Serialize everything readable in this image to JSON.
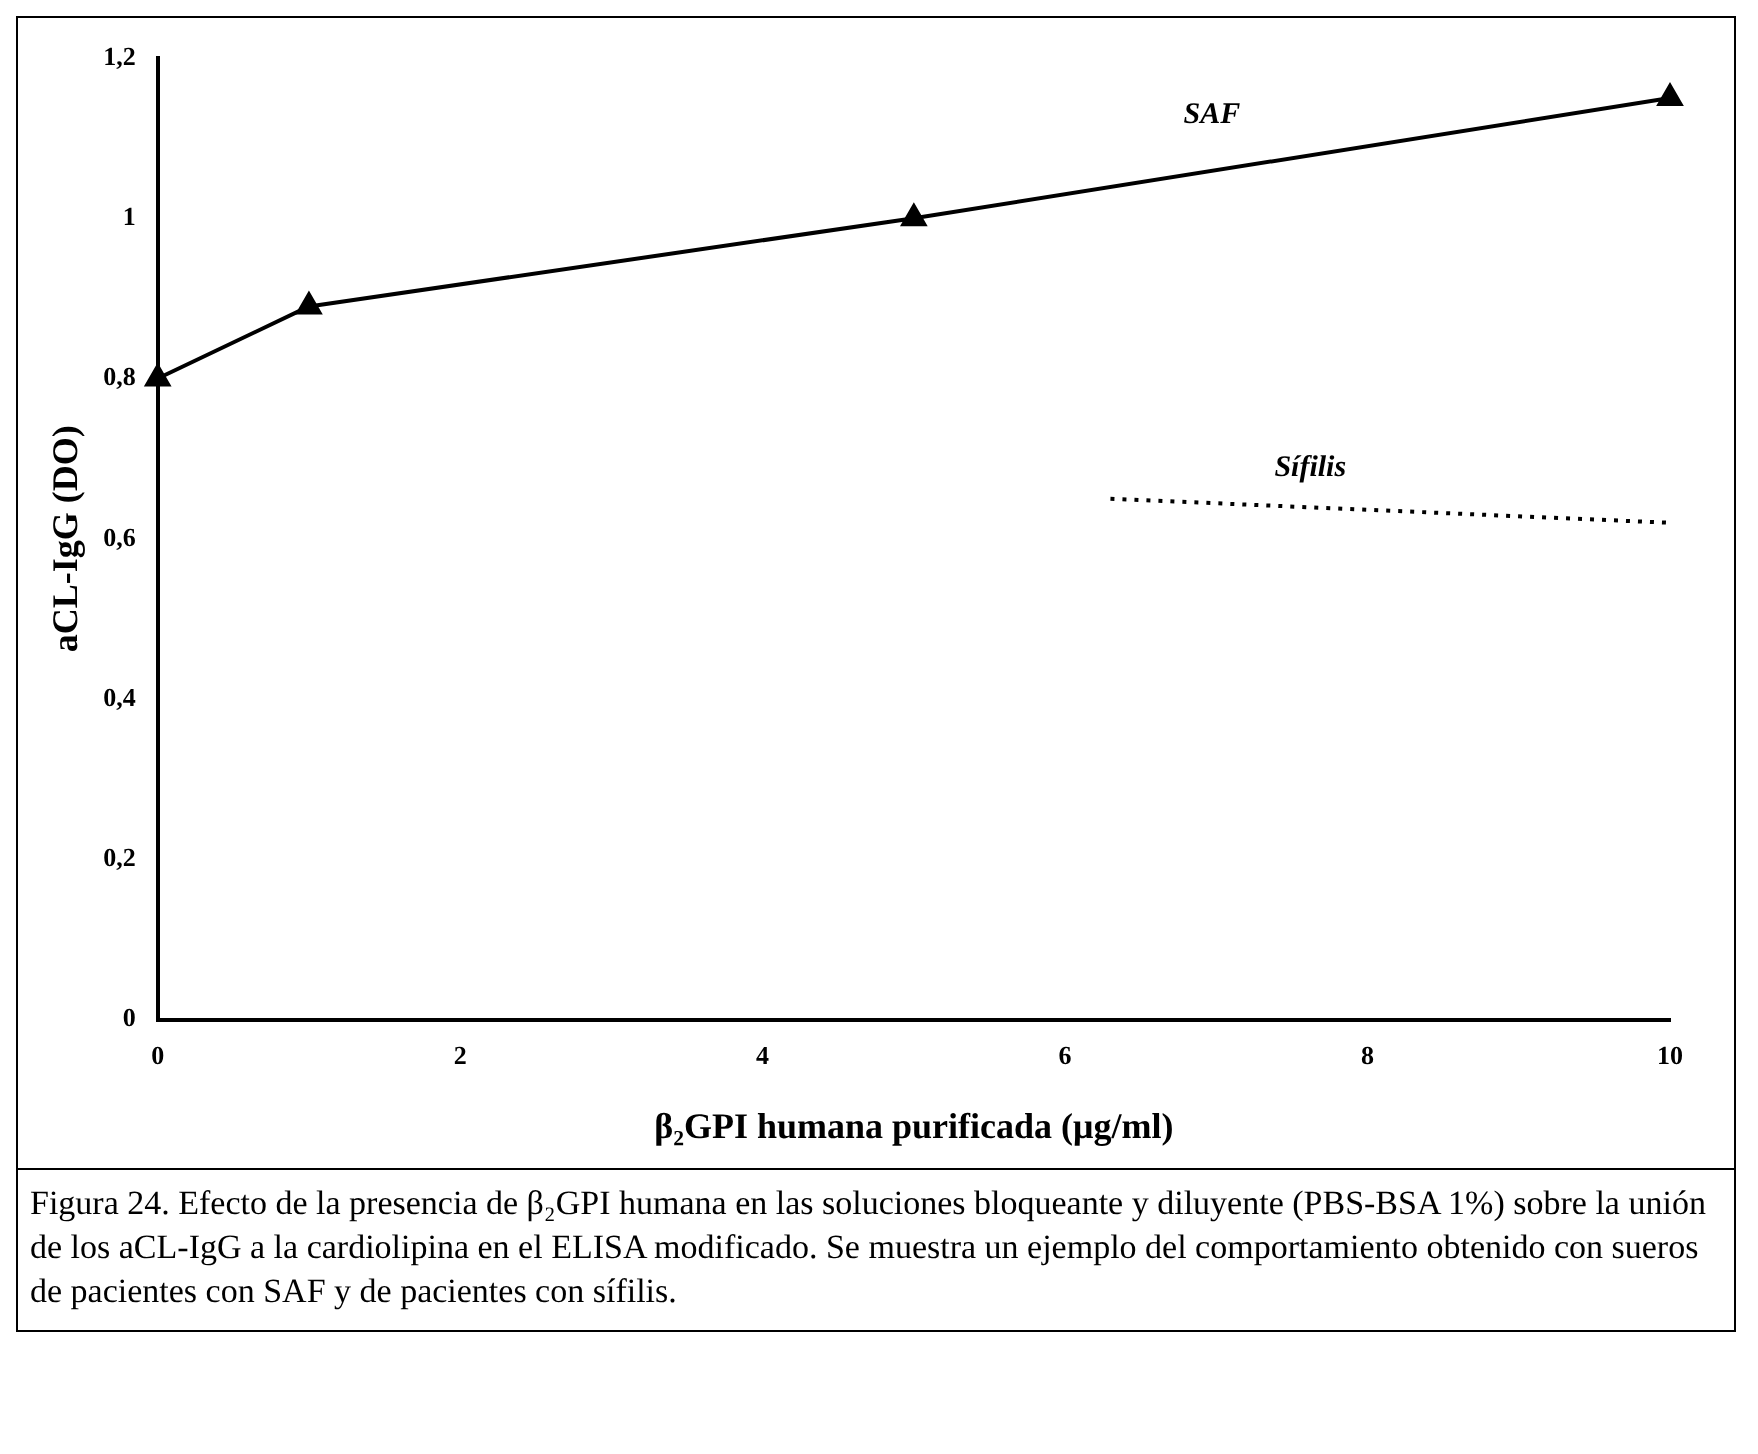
{
  "chart_data": {
    "type": "line",
    "xlabel": "β₂GPI humana purificada (μg/ml)",
    "ylabel": "aCL-IgG (DO)",
    "xlim": [
      0,
      10
    ],
    "xticks": [
      0,
      2,
      4,
      6,
      8,
      10
    ],
    "ylim": [
      0,
      1.2
    ],
    "yticks": [
      0,
      {
        "value": 0.2,
        "label": "0,2"
      },
      {
        "value": 0.4,
        "label": "0,4"
      },
      {
        "value": 0.6,
        "label": "0,6"
      },
      {
        "value": 0.8,
        "label": "0,8"
      },
      1,
      {
        "value": 1.2,
        "label": "1,2"
      }
    ],
    "grid": false,
    "legend": false,
    "series": [
      {
        "name": "SAF",
        "color": "#000000",
        "x": [
          0,
          1,
          5,
          10
        ],
        "values": [
          0.8,
          0.89,
          1.0,
          1.15
        ],
        "marker": "triangle",
        "line_style": "solid"
      },
      {
        "name": "Sífilis",
        "color": "#000000",
        "x": [
          6.3,
          10
        ],
        "values": [
          0.65,
          0.62
        ],
        "marker": "none",
        "line_style": "dotted"
      }
    ],
    "annotations": [
      "Figura 24. Efecto de la presencia de β₂GPI humana en las soluciones bloqueante y diluyente (PBS-BSA 1%) sobre la unión de los aCL-IgG a la cardiolipina en el ELISA modificado. Se muestra un ejemplo del comportamiento obtenido con sueros de pacientes con SAF y de pacientes con sífilis."
    ]
  }
}
